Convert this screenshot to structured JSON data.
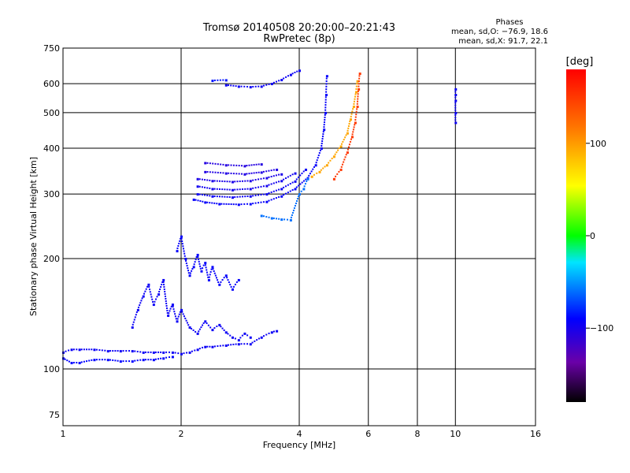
{
  "chart_data": {
    "type": "scatter",
    "title": "Tromsø 20140508 20:20:00–20:21:43",
    "subtitle": "RwPretec (8p)",
    "xlabel": "Frequency [MHz]",
    "ylabel": "Stationary phase Virtual Height [km]",
    "x_scale": "log",
    "y_scale": "log",
    "xlim": [
      1,
      16
    ],
    "ylim": [
      70,
      750
    ],
    "x_ticks": [
      "1",
      "2",
      "4",
      "6",
      "8",
      "10",
      "16"
    ],
    "y_ticks": [
      "75",
      "100",
      "200",
      "300",
      "400",
      "500",
      "600",
      "750"
    ],
    "grid": true,
    "phase_stats": {
      "title": "Phases",
      "line_o": "mean, sd,O: −76.9, 18.6",
      "line_x": "mean, sd,X:  91.7, 22.1"
    },
    "colorbar": {
      "unit": "[deg]",
      "min": -180,
      "max": 180,
      "ticks": [
        "100",
        "0",
        "−100"
      ],
      "tick_values": [
        100,
        0,
        -100
      ]
    },
    "series": [
      {
        "trace": "e-layer-bottom",
        "phase": -95,
        "points": [
          [
            1.0,
            111
          ],
          [
            1.05,
            113
          ],
          [
            1.1,
            113
          ],
          [
            1.2,
            113
          ],
          [
            1.3,
            112
          ],
          [
            1.4,
            112
          ],
          [
            1.5,
            112
          ],
          [
            1.6,
            111
          ],
          [
            1.7,
            111
          ],
          [
            1.8,
            111
          ],
          [
            1.9,
            111
          ],
          [
            2.0,
            110
          ],
          [
            2.1,
            111
          ],
          [
            2.2,
            113
          ],
          [
            2.3,
            115
          ],
          [
            2.4,
            115
          ],
          [
            2.6,
            116
          ],
          [
            2.8,
            117
          ],
          [
            3.0,
            117
          ],
          [
            3.2,
            122
          ],
          [
            3.4,
            126
          ],
          [
            3.5,
            127
          ]
        ]
      },
      {
        "trace": "e-layer-lower",
        "phase": -90,
        "points": [
          [
            1.0,
            107
          ],
          [
            1.05,
            104
          ],
          [
            1.1,
            104
          ],
          [
            1.2,
            106
          ],
          [
            1.3,
            106
          ],
          [
            1.4,
            105
          ],
          [
            1.5,
            105
          ],
          [
            1.6,
            106
          ],
          [
            1.7,
            106
          ],
          [
            1.8,
            107
          ],
          [
            1.9,
            108
          ]
        ]
      },
      {
        "trace": "es-spread",
        "phase": -95,
        "points": [
          [
            1.5,
            130
          ],
          [
            1.55,
            145
          ],
          [
            1.6,
            158
          ],
          [
            1.65,
            170
          ],
          [
            1.7,
            150
          ],
          [
            1.75,
            160
          ],
          [
            1.8,
            175
          ],
          [
            1.85,
            140
          ],
          [
            1.9,
            150
          ],
          [
            1.95,
            135
          ],
          [
            2.0,
            145
          ],
          [
            2.1,
            130
          ],
          [
            2.2,
            125
          ],
          [
            2.3,
            135
          ],
          [
            2.4,
            128
          ],
          [
            2.5,
            132
          ],
          [
            2.6,
            126
          ],
          [
            2.7,
            122
          ],
          [
            2.8,
            120
          ],
          [
            2.9,
            125
          ],
          [
            3.0,
            122
          ]
        ]
      },
      {
        "trace": "f-spread-low",
        "phase": -92,
        "points": [
          [
            1.95,
            210
          ],
          [
            2.0,
            230
          ],
          [
            2.05,
            200
          ],
          [
            2.1,
            180
          ],
          [
            2.15,
            190
          ],
          [
            2.2,
            205
          ],
          [
            2.25,
            185
          ],
          [
            2.3,
            195
          ],
          [
            2.35,
            175
          ],
          [
            2.4,
            190
          ],
          [
            2.5,
            170
          ],
          [
            2.6,
            180
          ],
          [
            2.7,
            165
          ],
          [
            2.8,
            175
          ]
        ]
      },
      {
        "trace": "f-trace-1",
        "phase": -92,
        "points": [
          [
            2.15,
            290
          ],
          [
            2.3,
            285
          ],
          [
            2.5,
            282
          ],
          [
            2.8,
            281
          ],
          [
            3.0,
            282
          ],
          [
            3.3,
            286
          ],
          [
            3.6,
            296
          ],
          [
            3.9,
            310
          ],
          [
            4.2,
            332
          ],
          [
            4.4,
            360
          ],
          [
            4.55,
            400
          ],
          [
            4.62,
            450
          ],
          [
            4.66,
            500
          ],
          [
            4.68,
            560
          ],
          [
            4.7,
            630
          ]
        ]
      },
      {
        "trace": "f-trace-2",
        "phase": -95,
        "points": [
          [
            2.2,
            300
          ],
          [
            2.4,
            296
          ],
          [
            2.7,
            294
          ],
          [
            3.0,
            296
          ],
          [
            3.3,
            300
          ],
          [
            3.6,
            310
          ],
          [
            3.9,
            325
          ],
          [
            4.15,
            350
          ]
        ]
      },
      {
        "trace": "f-trace-3",
        "phase": -98,
        "points": [
          [
            2.2,
            315
          ],
          [
            2.4,
            310
          ],
          [
            2.7,
            308
          ],
          [
            3.0,
            310
          ],
          [
            3.3,
            316
          ],
          [
            3.6,
            326
          ],
          [
            3.9,
            342
          ]
        ]
      },
      {
        "trace": "f-trace-4",
        "phase": -102,
        "points": [
          [
            2.2,
            330
          ],
          [
            2.4,
            326
          ],
          [
            2.7,
            324
          ],
          [
            3.0,
            326
          ],
          [
            3.3,
            332
          ],
          [
            3.6,
            340
          ]
        ]
      },
      {
        "trace": "f-trace-5",
        "phase": -104,
        "points": [
          [
            2.3,
            345
          ],
          [
            2.6,
            342
          ],
          [
            2.9,
            340
          ],
          [
            3.2,
            344
          ],
          [
            3.5,
            350
          ]
        ]
      },
      {
        "trace": "f-trace-6",
        "phase": -106,
        "points": [
          [
            2.3,
            365
          ],
          [
            2.6,
            360
          ],
          [
            2.9,
            358
          ],
          [
            3.2,
            362
          ]
        ]
      },
      {
        "trace": "f-cyan-mid",
        "phase": -60,
        "points": [
          [
            3.2,
            262
          ],
          [
            3.4,
            258
          ],
          [
            3.6,
            256
          ],
          [
            3.8,
            255
          ],
          [
            4.0,
            300
          ],
          [
            4.1,
            310
          ],
          [
            4.2,
            330
          ]
        ]
      },
      {
        "trace": "x-trace",
        "phase": 95,
        "points": [
          [
            4.3,
            335
          ],
          [
            4.5,
            345
          ],
          [
            4.7,
            360
          ],
          [
            4.9,
            380
          ],
          [
            5.1,
            405
          ],
          [
            5.3,
            440
          ],
          [
            5.4,
            480
          ],
          [
            5.5,
            520
          ],
          [
            5.58,
            570
          ],
          [
            5.62,
            610
          ]
        ]
      },
      {
        "trace": "x-trace-inner",
        "phase": 150,
        "points": [
          [
            4.9,
            330
          ],
          [
            5.1,
            350
          ],
          [
            5.3,
            390
          ],
          [
            5.45,
            430
          ],
          [
            5.55,
            470
          ],
          [
            5.62,
            520
          ],
          [
            5.66,
            580
          ],
          [
            5.7,
            640
          ]
        ]
      },
      {
        "trace": "f-top-arc",
        "phase": -95,
        "points": [
          [
            2.6,
            595
          ],
          [
            2.8,
            590
          ],
          [
            3.0,
            588
          ],
          [
            3.2,
            590
          ],
          [
            3.4,
            600
          ],
          [
            3.6,
            615
          ],
          [
            3.8,
            635
          ],
          [
            4.0,
            652
          ]
        ]
      },
      {
        "trace": "f-top-arc-2",
        "phase": -85,
        "points": [
          [
            2.4,
            612
          ],
          [
            2.6,
            614
          ]
        ]
      },
      {
        "trace": "vertical-10",
        "phase": -95,
        "points": [
          [
            10.0,
            470
          ],
          [
            10.0,
            500
          ],
          [
            10.0,
            540
          ],
          [
            10.0,
            560
          ],
          [
            10.0,
            580
          ]
        ]
      }
    ]
  }
}
